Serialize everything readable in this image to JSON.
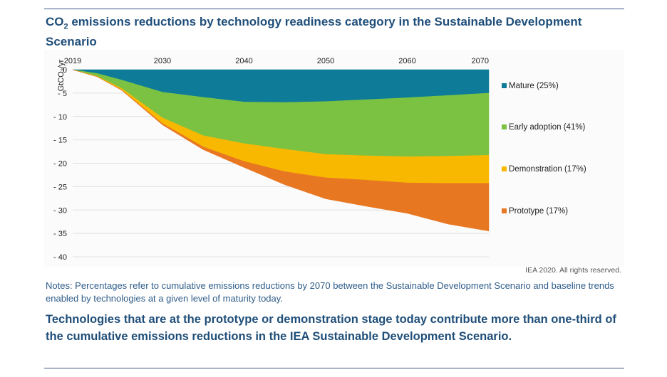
{
  "page": {
    "title_pre": "CO",
    "title_sub": "2",
    "title_post": " emissions reductions by technology readiness category in the Sustainable Development Scenario",
    "credit": "IEA 2020. All rights reserved.",
    "notes": "Notes: Percentages refer to cumulative emissions reductions by 2070 between the Sustainable Development Scenario and baseline trends enabled by technologies at a given level of maturity today.",
    "summary": "Technologies that are at the prototype or demonstration stage today contribute more than one-third of the cumulative emissions reductions in the IEA Sustainable Development Scenario."
  },
  "chart_data": {
    "type": "area",
    "ylabel": "GtCO₂/yr",
    "x_ticks": [
      2019,
      2030,
      2040,
      2050,
      2060,
      2070
    ],
    "xlim": [
      2019,
      2070
    ],
    "y_ticks": [
      "0",
      "- 5",
      "- 10",
      "- 15",
      "- 20",
      "- 25",
      "- 30",
      "- 35",
      "- 40"
    ],
    "y_tick_values": [
      0,
      -5,
      -10,
      -15,
      -20,
      -25,
      -30,
      -35,
      -40
    ],
    "ylim": [
      -40,
      0
    ],
    "x": [
      2019,
      2022,
      2025,
      2030,
      2035,
      2040,
      2045,
      2050,
      2055,
      2060,
      2065,
      2070
    ],
    "series": [
      {
        "name": "Mature (25%)",
        "color": "#0e7c99",
        "values": [
          0,
          -0.8,
          -2.2,
          -4.8,
          -5.9,
          -6.9,
          -7.0,
          -6.8,
          -6.4,
          -6.0,
          -5.5,
          -5.0
        ]
      },
      {
        "name": "Early adoption (41%)",
        "color": "#7cc242",
        "values": [
          0,
          -0.6,
          -1.8,
          -5.5,
          -8.2,
          -8.9,
          -10.0,
          -11.3,
          -12.0,
          -12.6,
          -13.0,
          -13.3
        ]
      },
      {
        "name": "Demonstration (17%)",
        "color": "#f9b800",
        "values": [
          0,
          -0.1,
          -0.3,
          -1.2,
          -2.4,
          -3.8,
          -4.8,
          -5.0,
          -5.2,
          -5.6,
          -5.8,
          -6.0
        ]
      },
      {
        "name": "Prototype (17%)",
        "color": "#e87722",
        "values": [
          0,
          0,
          -0.1,
          -0.3,
          -0.6,
          -1.3,
          -2.8,
          -4.5,
          -5.6,
          -6.5,
          -8.7,
          -10.2
        ]
      }
    ],
    "legend_position": "right"
  }
}
